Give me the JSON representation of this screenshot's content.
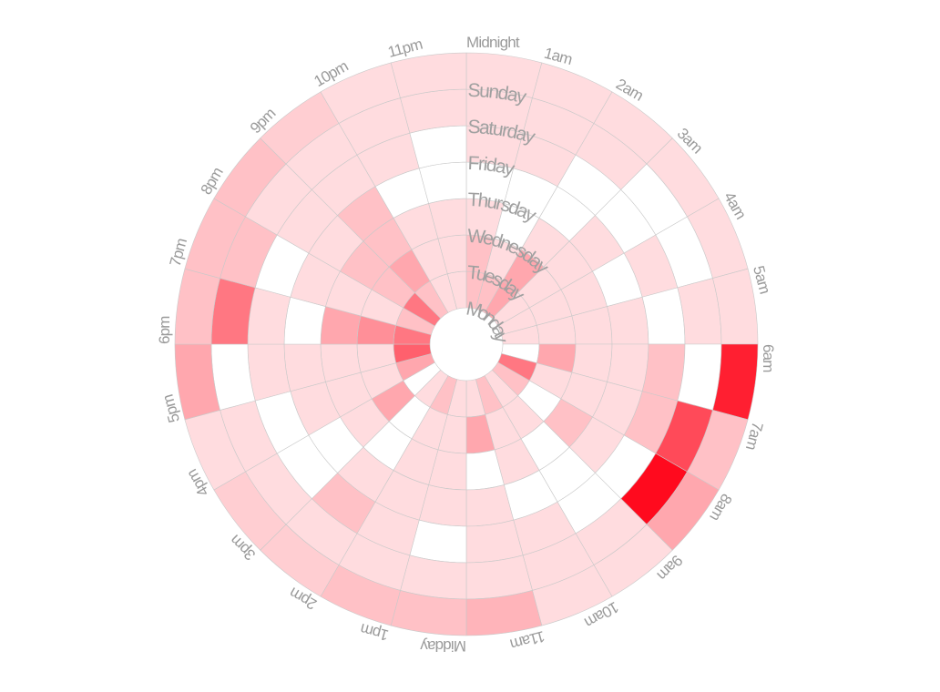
{
  "chart_data": {
    "type": "heatmap",
    "subtype": "radial",
    "title": "",
    "hours": [
      "Midnight",
      "1am",
      "2am",
      "3am",
      "4am",
      "5am",
      "6am",
      "7am",
      "8am",
      "9am",
      "10am",
      "11am",
      "Midday",
      "1pm",
      "2pm",
      "3pm",
      "4pm",
      "5pm",
      "6pm",
      "7pm",
      "8pm",
      "9pm",
      "10pm",
      "11pm"
    ],
    "days": [
      "Monday",
      "Tuesday",
      "Wednesday",
      "Thursday",
      "Friday",
      "Saturday",
      "Sunday"
    ],
    "scale": {
      "min": 0,
      "max": 10,
      "color_low": "#ffffff",
      "color_high": "#ff0a1e"
    },
    "values": [
      [
        2,
        2,
        1,
        0,
        1,
        1,
        1
      ],
      [
        2,
        1,
        0,
        0,
        1,
        1,
        1
      ],
      [
        3,
        3,
        1,
        0,
        0,
        1,
        1
      ],
      [
        1,
        1,
        1,
        1,
        0,
        0,
        1
      ],
      [
        1,
        1,
        1,
        0,
        1,
        0,
        1
      ],
      [
        1,
        1,
        1,
        1,
        0,
        1,
        1
      ],
      [
        0,
        3,
        1,
        1,
        2,
        0,
        9
      ],
      [
        5,
        1,
        1,
        1,
        2,
        7,
        2
      ],
      [
        2,
        0,
        2,
        1,
        0,
        10,
        3
      ],
      [
        1,
        1,
        0,
        0,
        0,
        1,
        1
      ],
      [
        2,
        1,
        1,
        0,
        1,
        1,
        1
      ],
      [
        1,
        3,
        0,
        1,
        1,
        1,
        2.5
      ],
      [
        1,
        1,
        1,
        1,
        0,
        1,
        2
      ],
      [
        2,
        1,
        1,
        1,
        1,
        1,
        2
      ],
      [
        1,
        0,
        0,
        1,
        2,
        1,
        1.5
      ],
      [
        0,
        3,
        1,
        0,
        0,
        1,
        1.5
      ],
      [
        3,
        1,
        1,
        1,
        0,
        1,
        1
      ],
      [
        6,
        1,
        1,
        1,
        1,
        0,
        3
      ],
      [
        5,
        4,
        3,
        0,
        1,
        5,
        2
      ],
      [
        2,
        1,
        1,
        1,
        0,
        2,
        2
      ],
      [
        5,
        2,
        2,
        1,
        1,
        1,
        2
      ],
      [
        2,
        3,
        2,
        2,
        1,
        1,
        1.5
      ],
      [
        1,
        1,
        1,
        0,
        1,
        1,
        1
      ],
      [
        1,
        1,
        1,
        0,
        0,
        1,
        1
      ]
    ],
    "layout": {
      "center": [
        512,
        378
      ],
      "inner_radius": 40,
      "ring_width": 40,
      "start_angle_deg": 0,
      "direction": "clockwise",
      "legend": "none",
      "grid": true
    }
  }
}
